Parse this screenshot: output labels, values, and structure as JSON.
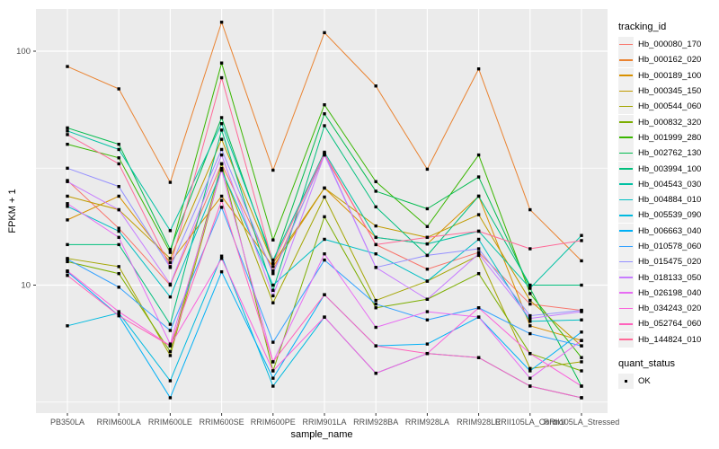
{
  "colors": {
    "panel_bg": "#EBEBEB",
    "grid": "#FFFFFF",
    "axis_text": "#4D4D4D",
    "tick_mark": "#333333",
    "point": "#000000",
    "key_bg": "#F0F0F0"
  },
  "chart_data": {
    "type": "line",
    "title": "",
    "xlabel": "sample_name",
    "ylabel": "FPKM + 1",
    "y_scale": "log10",
    "ylim": [
      2.8,
      146
    ],
    "y_ticks": [
      10,
      100
    ],
    "y_minor": [
      3.162,
      31.62
    ],
    "grid": "on",
    "legend_position": "right",
    "point_shape": "square",
    "x_categories": [
      "PB350LA",
      "RRIM600LA",
      "RRIM600LE",
      "RRIM600SE",
      "RRIM600PE",
      "RRIM901LA",
      "RRIM928BA",
      "RRIM928LA",
      "RRIM928LE",
      "RRII105LA_Control",
      "RRII105LA_Stressed"
    ],
    "series": [
      {
        "name": "Hb_000080_170",
        "color": "#F8766D",
        "values": [
          28,
          17.5,
          10.0,
          33,
          11.5,
          36,
          14.9,
          11.7,
          13.8,
          8.3,
          7.8
        ]
      },
      {
        "name": "Hb_000162_020",
        "color": "#EA8331",
        "values": [
          86,
          69,
          27.5,
          133,
          31,
          120,
          71,
          31.3,
          84,
          21,
          12.7
        ]
      },
      {
        "name": "Hb_000189_100",
        "color": "#D89000",
        "values": [
          19,
          24,
          12.5,
          24,
          12.0,
          26,
          16,
          15,
          24,
          6.7,
          5.8
        ]
      },
      {
        "name": "Hb_000345_150",
        "color": "#C09B00",
        "values": [
          24,
          21,
          13.0,
          42,
          12.4,
          26,
          17.9,
          16,
          20,
          8.6,
          5.5
        ]
      },
      {
        "name": "Hb_000544_060",
        "color": "#A3A500",
        "values": [
          13,
          12,
          5.0,
          31.5,
          8.4,
          23.8,
          8.6,
          10.4,
          13.4,
          4.4,
          4.7
        ]
      },
      {
        "name": "Hb_000832_320",
        "color": "#7CAE00",
        "values": [
          12.6,
          11.2,
          5.2,
          33,
          4.3,
          19.6,
          8.0,
          8.7,
          11.2,
          5.1,
          4.3
        ]
      },
      {
        "name": "Hb_001999_280",
        "color": "#39B600",
        "values": [
          40,
          35,
          13.8,
          89,
          15.6,
          59,
          27.7,
          17.8,
          36,
          9.2,
          4.9
        ]
      },
      {
        "name": "Hb_002762_130",
        "color": "#00BB4E",
        "values": [
          47,
          40,
          14.2,
          52,
          12.4,
          54,
          25.2,
          21.2,
          29,
          9.7,
          3.7
        ]
      },
      {
        "name": "Hb_003994_100",
        "color": "#00BF7D",
        "values": [
          14.9,
          14.9,
          6.8,
          46,
          9.5,
          48,
          21.6,
          13.4,
          24,
          10.0,
          10.0
        ]
      },
      {
        "name": "Hb_004543_030",
        "color": "#00C1A3",
        "values": [
          45.6,
          38,
          17.1,
          49,
          12.8,
          37,
          16,
          15,
          17,
          9.7,
          16.3
        ]
      },
      {
        "name": "Hb_004884_010",
        "color": "#00BFC4",
        "values": [
          21.7,
          17,
          8.9,
          31,
          10.0,
          15.7,
          13.6,
          10.4,
          15.7,
          7.0,
          7.1
        ]
      },
      {
        "name": "Hb_005539_090",
        "color": "#00BAE0",
        "values": [
          6.7,
          7.6,
          3.9,
          13.3,
          3.7,
          7.3,
          4.2,
          5.1,
          4.9,
          3.7,
          3.3
        ]
      },
      {
        "name": "Hb_006663_040",
        "color": "#00B0F6",
        "values": [
          11.4,
          7.4,
          3.3,
          11.4,
          4.0,
          9.1,
          5.5,
          5.6,
          7.3,
          4.3,
          6.3
        ]
      },
      {
        "name": "Hb_010578_060",
        "color": "#35A2FF",
        "values": [
          12.9,
          9.8,
          6.4,
          21.5,
          5.7,
          12.8,
          8.3,
          7.1,
          8.0,
          6.2,
          5.5
        ]
      },
      {
        "name": "Hb_015475_020",
        "color": "#9590FF",
        "values": [
          31.6,
          26.4,
          11.9,
          38,
          11.2,
          36.5,
          11.9,
          13.4,
          14.3,
          7.4,
          7.8
        ]
      },
      {
        "name": "Hb_018133_050",
        "color": "#C77CFF",
        "values": [
          27.7,
          21,
          10.1,
          36,
          9.0,
          36,
          11.9,
          8.7,
          13.6,
          7.2,
          7.7
        ]
      },
      {
        "name": "Hb_026198_040",
        "color": "#E76BF3",
        "values": [
          22.3,
          16,
          5.6,
          31,
          4.7,
          13.6,
          6.6,
          7.7,
          7.3,
          4.0,
          5.8
        ]
      },
      {
        "name": "Hb_034243_020",
        "color": "#FA62DB",
        "values": [
          11.5,
          7.7,
          5.5,
          13.0,
          4.3,
          7.3,
          4.2,
          5.1,
          8.0,
          5.1,
          3.7
        ]
      },
      {
        "name": "Hb_052764_060",
        "color": "#FF62BC",
        "values": [
          11.0,
          7.4,
          5.5,
          23,
          4.7,
          9.1,
          5.5,
          5.1,
          4.9,
          3.7,
          3.3
        ]
      },
      {
        "name": "Hb_144824_010",
        "color": "#FF6A98",
        "values": [
          44,
          33,
          12.0,
          77,
          12.4,
          36.5,
          14.9,
          16,
          17,
          14.3,
          15.5
        ]
      }
    ],
    "legend": {
      "tracking_title": "tracking_id",
      "quant_title": "quant_status",
      "quant_value": "OK"
    }
  }
}
